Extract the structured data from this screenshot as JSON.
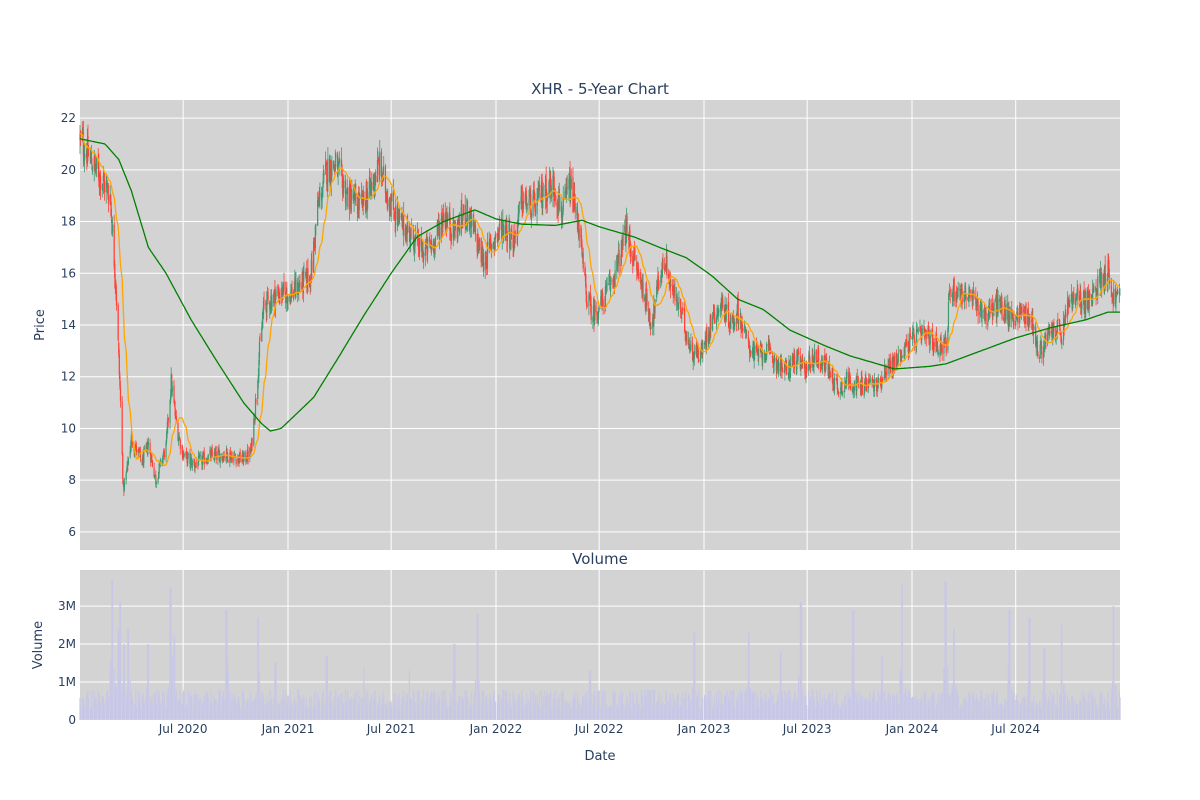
{
  "chart_data": [
    {
      "type": "candlestick",
      "title": "XHR - 5-Year Chart",
      "xlabel": "",
      "ylabel": "Price",
      "ylim": [
        5.3,
        22.7
      ],
      "yticks": [
        6,
        8,
        10,
        12,
        14,
        16,
        18,
        20,
        22
      ],
      "grid": true,
      "plot_bgcolor": "#d3d3d3",
      "increasing_color": "#3d9970",
      "decreasing_color": "#ff4136",
      "ma_short_color": "#ffa500",
      "ma_long_color": "#008000",
      "price_anchors": [
        [
          "2020-01-02",
          21.2
        ],
        [
          "2020-01-20",
          20.4
        ],
        [
          "2020-02-10",
          19.6
        ],
        [
          "2020-02-24",
          19.0
        ],
        [
          "2020-03-05",
          15.5
        ],
        [
          "2020-03-13",
          11.0
        ],
        [
          "2020-03-18",
          7.6
        ],
        [
          "2020-03-23",
          8.2
        ],
        [
          "2020-04-01",
          9.6
        ],
        [
          "2020-04-20",
          8.7
        ],
        [
          "2020-05-01",
          9.4
        ],
        [
          "2020-05-14",
          8.0
        ],
        [
          "2020-06-01",
          9.3
        ],
        [
          "2020-06-10",
          11.8
        ],
        [
          "2020-06-20",
          10.0
        ],
        [
          "2020-07-01",
          9.0
        ],
        [
          "2020-07-20",
          8.6
        ],
        [
          "2020-08-15",
          8.9
        ],
        [
          "2020-09-15",
          9.0
        ],
        [
          "2020-10-15",
          8.8
        ],
        [
          "2020-10-28",
          9.1
        ],
        [
          "2020-11-05",
          11.0
        ],
        [
          "2020-11-12",
          13.0
        ],
        [
          "2020-11-20",
          14.8
        ],
        [
          "2020-12-15",
          15.2
        ],
        [
          "2021-01-05",
          15.2
        ],
        [
          "2021-01-25",
          15.6
        ],
        [
          "2021-02-10",
          15.9
        ],
        [
          "2021-02-22",
          18.5
        ],
        [
          "2021-03-10",
          20.0
        ],
        [
          "2021-03-25",
          20.2
        ],
        [
          "2021-04-15",
          19.0
        ],
        [
          "2021-05-10",
          18.6
        ],
        [
          "2021-05-25",
          19.2
        ],
        [
          "2021-06-10",
          20.2
        ],
        [
          "2021-06-25",
          19.0
        ],
        [
          "2021-07-15",
          18.0
        ],
        [
          "2021-08-05",
          17.5
        ],
        [
          "2021-08-25",
          16.8
        ],
        [
          "2021-09-15",
          17.2
        ],
        [
          "2021-10-01",
          18.3
        ],
        [
          "2021-10-20",
          17.6
        ],
        [
          "2021-11-10",
          18.4
        ],
        [
          "2021-11-25",
          17.5
        ],
        [
          "2021-12-10",
          16.4
        ],
        [
          "2021-12-28",
          17.3
        ],
        [
          "2022-01-15",
          17.9
        ],
        [
          "2022-02-01",
          17.2
        ],
        [
          "2022-02-15",
          18.8
        ],
        [
          "2022-03-10",
          18.6
        ],
        [
          "2022-03-25",
          19.2
        ],
        [
          "2022-04-12",
          19.4
        ],
        [
          "2022-04-28",
          18.3
        ],
        [
          "2022-05-10",
          19.4
        ],
        [
          "2022-05-25",
          18.0
        ],
        [
          "2022-06-08",
          15.2
        ],
        [
          "2022-06-20",
          14.4
        ],
        [
          "2022-07-05",
          14.8
        ],
        [
          "2022-07-25",
          15.8
        ],
        [
          "2022-08-10",
          16.9
        ],
        [
          "2022-08-17",
          17.7
        ],
        [
          "2022-08-30",
          16.6
        ],
        [
          "2022-09-20",
          15.1
        ],
        [
          "2022-10-01",
          14.0
        ],
        [
          "2022-10-15",
          15.9
        ],
        [
          "2022-10-25",
          16.5
        ],
        [
          "2022-11-05",
          15.4
        ],
        [
          "2022-11-20",
          14.6
        ],
        [
          "2022-12-10",
          13.0
        ],
        [
          "2022-12-28",
          12.9
        ],
        [
          "2023-01-15",
          14.3
        ],
        [
          "2023-02-01",
          14.8
        ],
        [
          "2023-02-20",
          14.0
        ],
        [
          "2023-03-01",
          14.6
        ],
        [
          "2023-03-15",
          13.5
        ],
        [
          "2023-04-01",
          12.8
        ],
        [
          "2023-04-20",
          13.0
        ],
        [
          "2023-05-10",
          12.5
        ],
        [
          "2023-05-25",
          12.2
        ],
        [
          "2023-06-10",
          12.7
        ],
        [
          "2023-06-25",
          12.3
        ],
        [
          "2023-07-15",
          12.8
        ],
        [
          "2023-08-05",
          12.4
        ],
        [
          "2023-08-25",
          11.5
        ],
        [
          "2023-09-10",
          11.9
        ],
        [
          "2023-10-01",
          11.6
        ],
        [
          "2023-10-20",
          11.8
        ],
        [
          "2023-11-01",
          11.6
        ],
        [
          "2023-11-15",
          12.3
        ],
        [
          "2023-12-01",
          12.5
        ],
        [
          "2023-12-15",
          13.0
        ],
        [
          "2024-01-05",
          13.5
        ],
        [
          "2024-01-25",
          13.6
        ],
        [
          "2024-02-15",
          13.2
        ],
        [
          "2024-03-01",
          13.3
        ],
        [
          "2024-03-08",
          15.4
        ],
        [
          "2024-04-01",
          15.2
        ],
        [
          "2024-04-20",
          14.9
        ],
        [
          "2024-05-10",
          14.4
        ],
        [
          "2024-06-01",
          14.8
        ],
        [
          "2024-06-20",
          14.3
        ],
        [
          "2024-07-15",
          14.5
        ],
        [
          "2024-08-01",
          14.0
        ],
        [
          "2024-08-10",
          12.8
        ],
        [
          "2024-08-25",
          13.5
        ],
        [
          "2024-09-10",
          13.9
        ],
        [
          "2024-09-20",
          13.5
        ],
        [
          "2024-10-01",
          14.9
        ],
        [
          "2024-10-20",
          15.0
        ],
        [
          "2024-11-10",
          14.9
        ],
        [
          "2024-11-25",
          15.8
        ],
        [
          "2024-12-10",
          16.1
        ],
        [
          "2024-12-18",
          15.1
        ],
        [
          "2024-12-31",
          15.1
        ]
      ],
      "ma200_anchors": [
        [
          "2020-01-02",
          21.2
        ],
        [
          "2020-02-15",
          21.0
        ],
        [
          "2020-03-10",
          20.4
        ],
        [
          "2020-04-01",
          19.2
        ],
        [
          "2020-05-01",
          17.0
        ],
        [
          "2020-06-01",
          16.0
        ],
        [
          "2020-07-15",
          14.2
        ],
        [
          "2020-09-01",
          12.5
        ],
        [
          "2020-10-15",
          11.0
        ],
        [
          "2020-11-15",
          10.2
        ],
        [
          "2020-12-01",
          9.9
        ],
        [
          "2020-12-20",
          10.0
        ],
        [
          "2021-02-15",
          11.2
        ],
        [
          "2021-04-01",
          12.8
        ],
        [
          "2021-05-15",
          14.4
        ],
        [
          "2021-07-01",
          16.0
        ],
        [
          "2021-08-15",
          17.4
        ],
        [
          "2021-10-01",
          18.0
        ],
        [
          "2021-11-25",
          18.45
        ],
        [
          "2022-01-01",
          18.1
        ],
        [
          "2022-02-15",
          17.9
        ],
        [
          "2022-04-15",
          17.85
        ],
        [
          "2022-06-01",
          18.05
        ],
        [
          "2022-07-01",
          17.8
        ],
        [
          "2022-08-01",
          17.6
        ],
        [
          "2022-09-01",
          17.4
        ],
        [
          "2022-10-15",
          17.0
        ],
        [
          "2022-12-01",
          16.6
        ],
        [
          "2023-01-15",
          15.9
        ],
        [
          "2023-03-01",
          15.0
        ],
        [
          "2023-04-15",
          14.6
        ],
        [
          "2023-06-01",
          13.8
        ],
        [
          "2023-08-01",
          13.2
        ],
        [
          "2023-09-15",
          12.8
        ],
        [
          "2023-11-01",
          12.5
        ],
        [
          "2023-12-01",
          12.3
        ],
        [
          "2024-02-01",
          12.4
        ],
        [
          "2024-03-01",
          12.5
        ],
        [
          "2024-05-01",
          13.0
        ],
        [
          "2024-07-01",
          13.5
        ],
        [
          "2024-09-01",
          13.9
        ],
        [
          "2024-11-01",
          14.2
        ],
        [
          "2024-12-10",
          14.5
        ],
        [
          "2024-12-31",
          14.5
        ]
      ]
    },
    {
      "type": "bar",
      "title": "Volume",
      "xlabel": "Date",
      "ylabel": "Volume",
      "ylim": [
        0,
        3950000
      ],
      "yticks": [
        0,
        1000000,
        2000000,
        3000000
      ],
      "ytick_labels": [
        "0",
        "1M",
        "2M",
        "3M"
      ],
      "bar_color": "#c8c8e6",
      "xticks": [
        "2020-07-01",
        "2021-01-01",
        "2021-07-01",
        "2022-01-01",
        "2022-07-01",
        "2023-01-01",
        "2023-07-01",
        "2024-01-01",
        "2024-07-01"
      ],
      "xtick_labels": [
        "Jul 2020",
        "Jan 2021",
        "Jul 2021",
        "Jan 2022",
        "Jul 2022",
        "Jan 2023",
        "Jul 2023",
        "Jan 2024",
        "Jul 2024"
      ],
      "xlim": [
        "2020-01-02",
        "2024-12-31"
      ],
      "base_volume": 600000,
      "volume_spikes": [
        [
          "2020-02-28",
          3700000
        ],
        [
          "2020-03-09",
          2400000
        ],
        [
          "2020-03-13",
          3100000
        ],
        [
          "2020-03-20",
          2000000
        ],
        [
          "2020-03-27",
          2400000
        ],
        [
          "2020-05-01",
          2000000
        ],
        [
          "2020-06-09",
          3500000
        ],
        [
          "2020-06-15",
          2200000
        ],
        [
          "2020-09-15",
          2900000
        ],
        [
          "2020-11-09",
          2700000
        ],
        [
          "2020-12-10",
          1500000
        ],
        [
          "2021-03-10",
          1700000
        ],
        [
          "2021-05-15",
          1400000
        ],
        [
          "2021-08-01",
          1300000
        ],
        [
          "2021-10-20",
          2000000
        ],
        [
          "2021-11-29",
          2800000
        ],
        [
          "2022-06-15",
          1300000
        ],
        [
          "2022-12-15",
          2300000
        ],
        [
          "2023-03-20",
          2300000
        ],
        [
          "2023-05-15",
          1800000
        ],
        [
          "2023-06-20",
          3100000
        ],
        [
          "2023-09-20",
          2900000
        ],
        [
          "2023-11-10",
          1700000
        ],
        [
          "2023-12-15",
          3600000
        ],
        [
          "2024-02-29",
          3650000
        ],
        [
          "2024-03-15",
          2400000
        ],
        [
          "2024-06-20",
          2900000
        ],
        [
          "2024-07-25",
          2700000
        ],
        [
          "2024-08-20",
          1900000
        ],
        [
          "2024-09-20",
          2500000
        ],
        [
          "2024-12-20",
          3000000
        ]
      ]
    }
  ]
}
